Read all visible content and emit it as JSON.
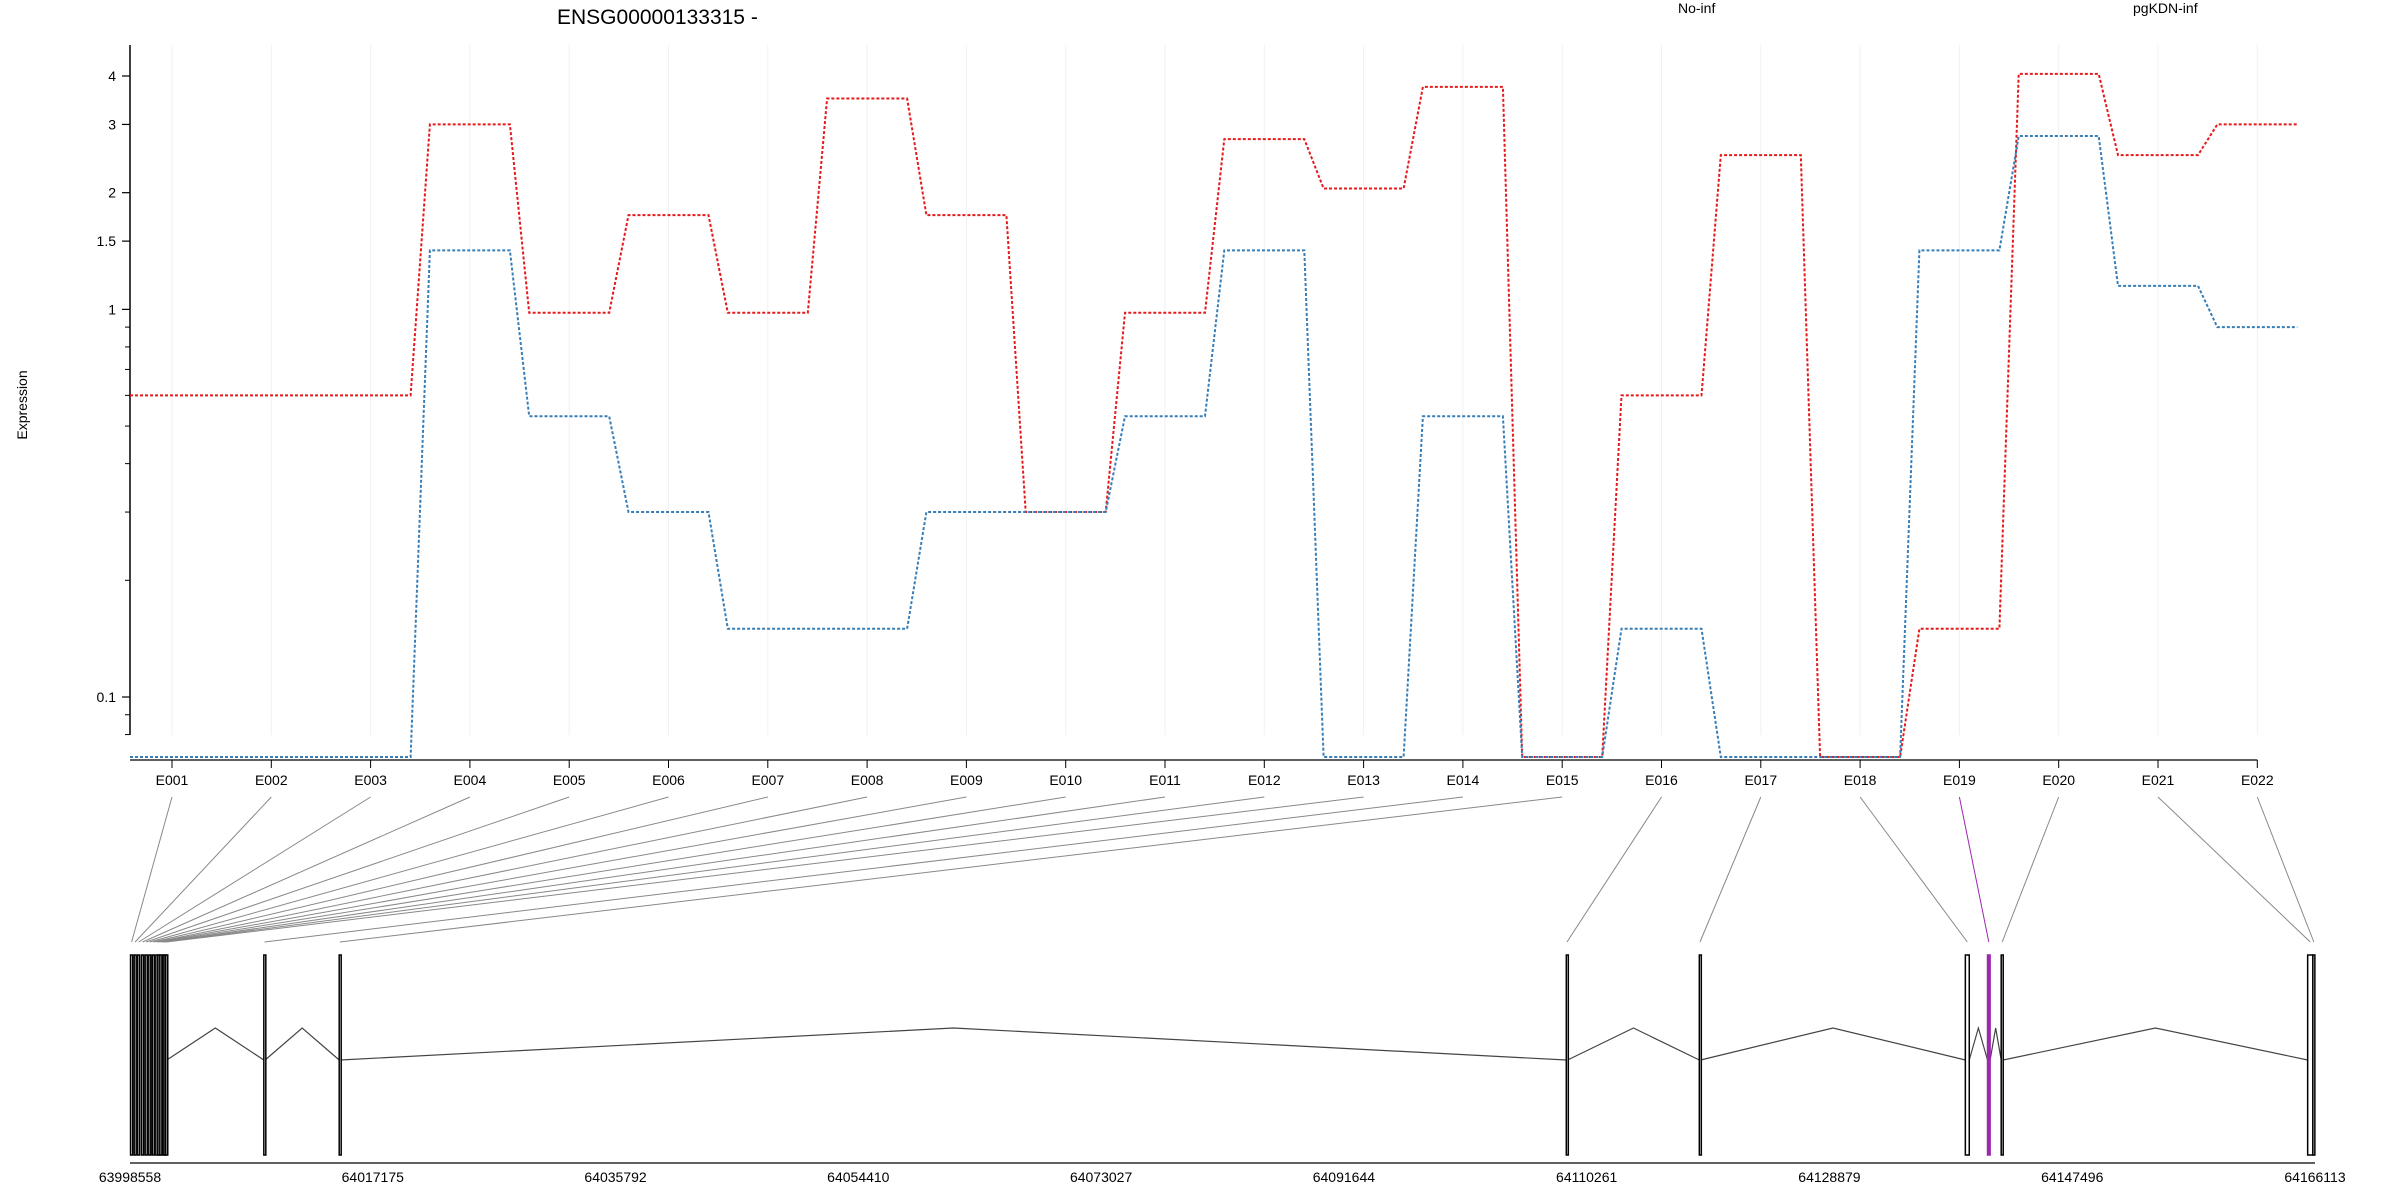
{
  "chart_data": {
    "type": "line",
    "title": "ENSG00000133315 -",
    "ylabel": "Expression",
    "yscale": "log",
    "yticks": [
      "0.1",
      "1",
      "1.5",
      "2",
      "3",
      "4"
    ],
    "ytick_values": [
      0.1,
      1,
      1.5,
      2,
      3,
      4
    ],
    "categories": [
      "E001",
      "E002",
      "E003",
      "E004",
      "E005",
      "E006",
      "E007",
      "E008",
      "E009",
      "E010",
      "E011",
      "E012",
      "E013",
      "E014",
      "E015",
      "E016",
      "E017",
      "E018",
      "E019",
      "E020",
      "E021",
      "E022"
    ],
    "series": [
      {
        "name": "No-inf",
        "color": "#E41A1C",
        "values": [
          0.6,
          0.6,
          0.6,
          3.0,
          0.98,
          1.75,
          0.98,
          3.5,
          1.75,
          0.3,
          0.98,
          2.75,
          2.05,
          3.75,
          0.07,
          0.6,
          2.5,
          0.07,
          0.15,
          4.05,
          2.5,
          3.0
        ]
      },
      {
        "name": "pgKDN-inf",
        "color": "#377EB8",
        "values": [
          0.07,
          0.07,
          0.07,
          1.42,
          0.53,
          0.3,
          0.15,
          0.15,
          0.3,
          0.3,
          0.53,
          1.42,
          0.07,
          0.53,
          0.07,
          0.15,
          0.07,
          0.07,
          1.42,
          2.8,
          1.15,
          0.9
        ]
      }
    ],
    "grid": true,
    "legend": "top"
  },
  "gene_model": {
    "highlight_color": "#9C27B0",
    "highlight_exon": "E019",
    "coordinate_ticks": [
      "63998558",
      "64017175",
      "64035792",
      "64054410",
      "64073027",
      "64091644",
      "64110261",
      "64128879",
      "64147496",
      "64166113"
    ],
    "coordinate_range": [
      63998558,
      64166113
    ],
    "exons": [
      {
        "id": "E001",
        "start": 63998600,
        "end": 63998760
      },
      {
        "id": "E002",
        "start": 63998880,
        "end": 63999020
      },
      {
        "id": "E003",
        "start": 63999150,
        "end": 63999300
      },
      {
        "id": "E004",
        "start": 63999450,
        "end": 63999600
      },
      {
        "id": "E005",
        "start": 63999720,
        "end": 63999880
      },
      {
        "id": "E006",
        "start": 64000000,
        "end": 64000150
      },
      {
        "id": "E007",
        "start": 64000270,
        "end": 64000420
      },
      {
        "id": "E008",
        "start": 64000540,
        "end": 64000620
      },
      {
        "id": "E009",
        "start": 64000700,
        "end": 64000780
      },
      {
        "id": "E010",
        "start": 64000850,
        "end": 64000960
      },
      {
        "id": "E011",
        "start": 64001060,
        "end": 64001120
      },
      {
        "id": "E012",
        "start": 64001170,
        "end": 64001230
      },
      {
        "id": "E013",
        "start": 64001300,
        "end": 64001380
      },
      {
        "id": "E014",
        "start": 64008820,
        "end": 64008920
      },
      {
        "id": "E015",
        "start": 64014600,
        "end": 64014700
      },
      {
        "id": "E016",
        "start": 64108700,
        "end": 64108800
      },
      {
        "id": "E017",
        "start": 64118900,
        "end": 64119000
      },
      {
        "id": "E018",
        "start": 64139300,
        "end": 64139600
      },
      {
        "id": "E019",
        "start": 64141000,
        "end": 64141200
      },
      {
        "id": "E020",
        "start": 64142050,
        "end": 64142200
      },
      {
        "id": "E021",
        "start": 64165550,
        "end": 64165950
      },
      {
        "id": "E022",
        "start": 64165950,
        "end": 64166100
      }
    ]
  }
}
